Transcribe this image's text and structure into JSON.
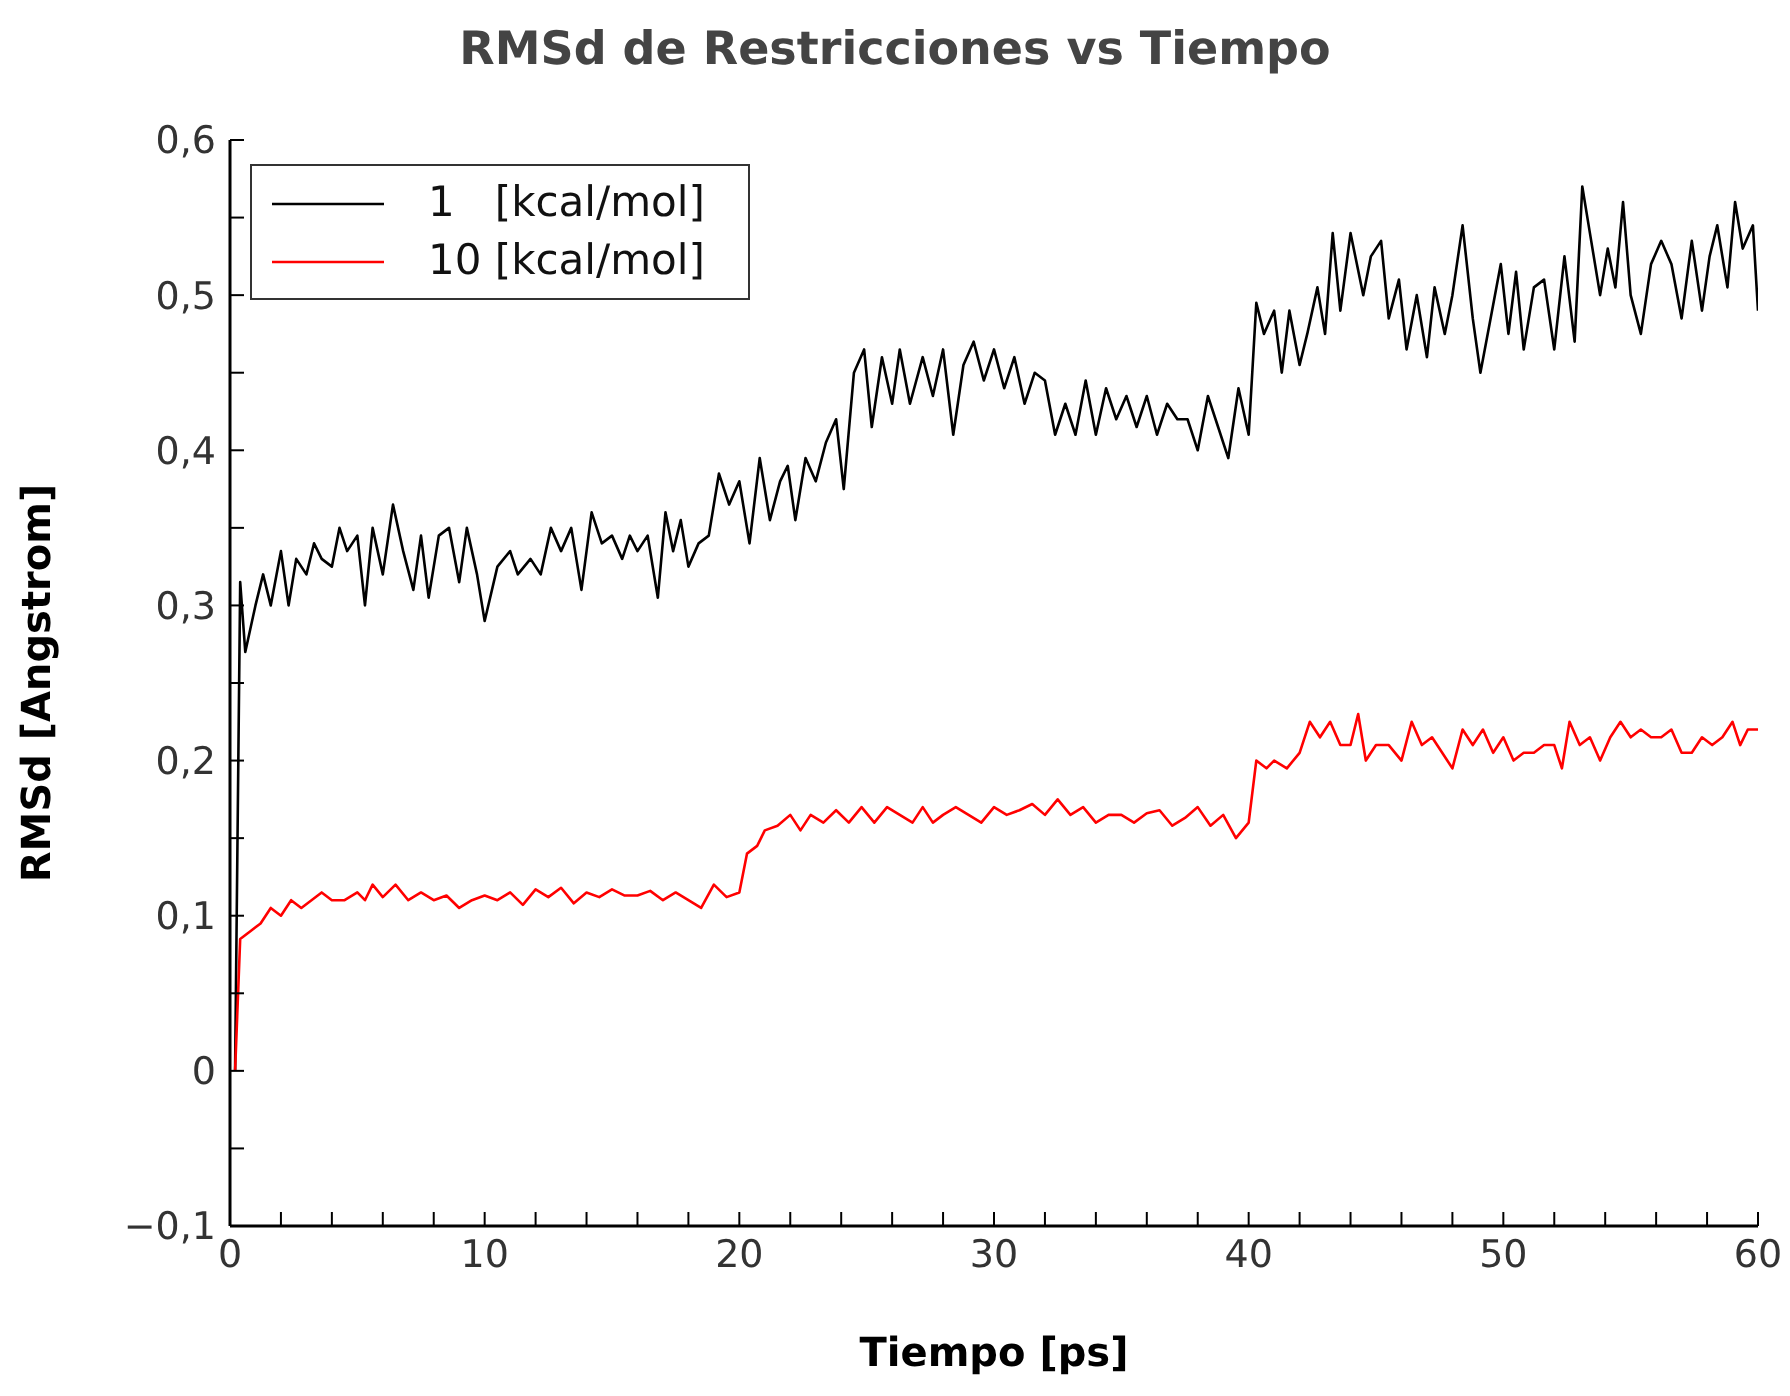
{
  "chart_data": {
    "type": "line",
    "title": "RMSd de Restricciones vs Tiempo",
    "xlabel": "Tiempo [ps]",
    "ylabel": "RMSd [Angstrom]",
    "xlim": [
      0,
      60
    ],
    "ylim": [
      -0.1,
      0.6
    ],
    "xticks": [
      0,
      {
        "value": 2,
        "label": null
      },
      {
        "value": 4,
        "label": null
      },
      {
        "value": 6,
        "label": null
      },
      {
        "value": 8,
        "label": null
      },
      10,
      {
        "value": 12,
        "label": null
      },
      {
        "value": 14,
        "label": null
      },
      {
        "value": 16,
        "label": null
      },
      {
        "value": 18,
        "label": null
      },
      20,
      {
        "value": 22,
        "label": null
      },
      {
        "value": 24,
        "label": null
      },
      {
        "value": 26,
        "label": null
      },
      {
        "value": 28,
        "label": null
      },
      30,
      {
        "value": 32,
        "label": null
      },
      {
        "value": 34,
        "label": null
      },
      {
        "value": 36,
        "label": null
      },
      {
        "value": 38,
        "label": null
      },
      40,
      {
        "value": 42,
        "label": null
      },
      {
        "value": 44,
        "label": null
      },
      {
        "value": 46,
        "label": null
      },
      {
        "value": 48,
        "label": null
      },
      50,
      {
        "value": 52,
        "label": null
      },
      {
        "value": 54,
        "label": null
      },
      {
        "value": 56,
        "label": null
      },
      {
        "value": 58,
        "label": null
      },
      60
    ],
    "yticks": [
      {
        "value": -0.1,
        "label": "−0,1"
      },
      {
        "value": -0.05,
        "label": null
      },
      {
        "value": 0,
        "label": "0"
      },
      {
        "value": 0.05,
        "label": null
      },
      {
        "value": 0.1,
        "label": "0,1"
      },
      {
        "value": 0.15,
        "label": null
      },
      {
        "value": 0.2,
        "label": "0,2"
      },
      {
        "value": 0.25,
        "label": null
      },
      {
        "value": 0.3,
        "label": "0,3"
      },
      {
        "value": 0.35,
        "label": null
      },
      {
        "value": 0.4,
        "label": "0,4"
      },
      {
        "value": 0.45,
        "label": null
      },
      {
        "value": 0.5,
        "label": "0,5"
      },
      {
        "value": 0.55,
        "label": null
      },
      {
        "value": 0.6,
        "label": "0,6"
      }
    ],
    "legend": "top left",
    "marker": "none",
    "line_style": "solid",
    "series": [
      {
        "name": "1   [kcal/mol]",
        "color": "#000000",
        "x": [
          0.2,
          0.4,
          0.6,
          1,
          1.3,
          1.6,
          2,
          2.3,
          2.6,
          3,
          3.3,
          3.6,
          4,
          4.3,
          4.6,
          5,
          5.3,
          5.6,
          6,
          6.4,
          6.8,
          7.2,
          7.5,
          7.8,
          8.2,
          8.6,
          9,
          9.3,
          9.7,
          10,
          10.5,
          11,
          11.3,
          11.8,
          12.2,
          12.6,
          13,
          13.4,
          13.8,
          14.2,
          14.6,
          15,
          15.4,
          15.7,
          16,
          16.4,
          16.8,
          17.1,
          17.4,
          17.7,
          18,
          18.4,
          18.8,
          19.2,
          19.6,
          20,
          20.4,
          20.8,
          21.2,
          21.6,
          21.9,
          22.2,
          22.6,
          23,
          23.4,
          23.8,
          24.1,
          24.5,
          24.9,
          25.2,
          25.6,
          26,
          26.3,
          26.7,
          27.2,
          27.6,
          28,
          28.4,
          28.8,
          29.2,
          29.6,
          30,
          30.4,
          30.8,
          31.2,
          31.6,
          32,
          32.4,
          32.8,
          33.2,
          33.6,
          34,
          34.4,
          34.8,
          35.2,
          35.6,
          36,
          36.4,
          36.8,
          37.2,
          37.6,
          38,
          38.4,
          38.8,
          39.2,
          39.6,
          40,
          40.3,
          40.6,
          41,
          41.3,
          41.6,
          42,
          42.3,
          42.7,
          43,
          43.3,
          43.6,
          44,
          44.5,
          44.8,
          45.2,
          45.5,
          45.9,
          46.2,
          46.6,
          47,
          47.3,
          47.7,
          48,
          48.4,
          48.8,
          49.1,
          49.5,
          49.9,
          50.2,
          50.5,
          50.8,
          51.2,
          51.6,
          52,
          52.4,
          52.8,
          53.1,
          53.4,
          53.8,
          54.1,
          54.4,
          54.7,
          55,
          55.4,
          55.8,
          56.2,
          56.6,
          57,
          57.4,
          57.8,
          58.1,
          58.4,
          58.8,
          59.1,
          59.4,
          59.8,
          60
        ],
        "values": [
          0,
          0.315,
          0.27,
          0.3,
          0.32,
          0.3,
          0.335,
          0.3,
          0.33,
          0.32,
          0.34,
          0.33,
          0.325,
          0.35,
          0.335,
          0.345,
          0.3,
          0.35,
          0.32,
          0.365,
          0.335,
          0.31,
          0.345,
          0.305,
          0.345,
          0.35,
          0.315,
          0.35,
          0.32,
          0.29,
          0.325,
          0.335,
          0.32,
          0.33,
          0.32,
          0.35,
          0.335,
          0.35,
          0.31,
          0.36,
          0.34,
          0.345,
          0.33,
          0.345,
          0.335,
          0.345,
          0.305,
          0.36,
          0.335,
          0.355,
          0.325,
          0.34,
          0.345,
          0.385,
          0.365,
          0.38,
          0.34,
          0.395,
          0.355,
          0.38,
          0.39,
          0.355,
          0.395,
          0.38,
          0.405,
          0.42,
          0.375,
          0.45,
          0.465,
          0.415,
          0.46,
          0.43,
          0.465,
          0.43,
          0.46,
          0.435,
          0.465,
          0.41,
          0.455,
          0.47,
          0.445,
          0.465,
          0.44,
          0.46,
          0.43,
          0.45,
          0.445,
          0.41,
          0.43,
          0.41,
          0.445,
          0.41,
          0.44,
          0.42,
          0.435,
          0.415,
          0.435,
          0.41,
          0.43,
          0.42,
          0.42,
          0.4,
          0.435,
          0.415,
          0.395,
          0.44,
          0.41,
          0.495,
          0.475,
          0.49,
          0.45,
          0.49,
          0.455,
          0.475,
          0.505,
          0.475,
          0.54,
          0.49,
          0.54,
          0.5,
          0.525,
          0.535,
          0.485,
          0.51,
          0.465,
          0.5,
          0.46,
          0.505,
          0.475,
          0.5,
          0.545,
          0.485,
          0.45,
          0.485,
          0.52,
          0.475,
          0.515,
          0.465,
          0.505,
          0.51,
          0.465,
          0.525,
          0.47,
          0.57,
          0.54,
          0.5,
          0.53,
          0.505,
          0.56,
          0.5,
          0.475,
          0.52,
          0.535,
          0.52,
          0.485,
          0.535,
          0.49,
          0.525,
          0.545,
          0.505,
          0.56,
          0.53,
          0.545,
          0.49
        ]
      },
      {
        "name": "10 [kcal/mol]",
        "color": "#ff0000",
        "x": [
          0.2,
          0.4,
          0.8,
          1.2,
          1.6,
          2,
          2.4,
          2.8,
          3.2,
          3.6,
          4,
          4.5,
          5,
          5.3,
          5.6,
          6,
          6.5,
          7,
          7.5,
          8,
          8.5,
          9,
          9.5,
          10,
          10.5,
          11,
          11.5,
          12,
          12.5,
          13,
          13.5,
          14,
          14.5,
          15,
          15.5,
          16,
          16.5,
          17,
          17.5,
          18,
          18.5,
          19,
          19.5,
          20,
          20.3,
          20.7,
          21,
          21.5,
          22,
          22.4,
          22.8,
          23.3,
          23.8,
          24.3,
          24.8,
          25.3,
          25.8,
          26.3,
          26.8,
          27.2,
          27.6,
          28,
          28.5,
          29,
          29.5,
          30,
          30.5,
          31,
          31.5,
          32,
          32.5,
          33,
          33.5,
          34,
          34.5,
          35,
          35.5,
          36,
          36.5,
          37,
          37.5,
          38,
          38.5,
          39,
          39.5,
          40,
          40.3,
          40.7,
          41,
          41.5,
          42,
          42.4,
          42.8,
          43.2,
          43.6,
          44,
          44.3,
          44.6,
          45,
          45.5,
          46,
          46.4,
          46.8,
          47.2,
          47.6,
          48,
          48.4,
          48.8,
          49.2,
          49.6,
          50,
          50.4,
          50.8,
          51.2,
          51.6,
          52,
          52.3,
          52.6,
          53,
          53.4,
          53.8,
          54.2,
          54.6,
          55,
          55.4,
          55.8,
          56.2,
          56.6,
          57,
          57.4,
          57.8,
          58.2,
          58.6,
          59,
          59.3,
          59.6,
          60
        ],
        "values": [
          0,
          0.085,
          0.09,
          0.095,
          0.105,
          0.1,
          0.11,
          0.105,
          0.11,
          0.115,
          0.11,
          0.11,
          0.115,
          0.11,
          0.12,
          0.112,
          0.12,
          0.11,
          0.115,
          0.11,
          0.113,
          0.105,
          0.11,
          0.113,
          0.11,
          0.115,
          0.107,
          0.117,
          0.112,
          0.118,
          0.108,
          0.115,
          0.112,
          0.117,
          0.113,
          0.113,
          0.116,
          0.11,
          0.115,
          0.11,
          0.105,
          0.12,
          0.112,
          0.115,
          0.14,
          0.145,
          0.155,
          0.158,
          0.165,
          0.155,
          0.165,
          0.16,
          0.168,
          0.16,
          0.17,
          0.16,
          0.17,
          0.165,
          0.16,
          0.17,
          0.16,
          0.165,
          0.17,
          0.165,
          0.16,
          0.17,
          0.165,
          0.168,
          0.172,
          0.165,
          0.175,
          0.165,
          0.17,
          0.16,
          0.165,
          0.165,
          0.16,
          0.166,
          0.168,
          0.158,
          0.163,
          0.17,
          0.158,
          0.165,
          0.15,
          0.16,
          0.2,
          0.195,
          0.2,
          0.195,
          0.205,
          0.225,
          0.215,
          0.225,
          0.21,
          0.21,
          0.23,
          0.2,
          0.21,
          0.21,
          0.2,
          0.225,
          0.21,
          0.215,
          0.205,
          0.195,
          0.22,
          0.21,
          0.22,
          0.205,
          0.215,
          0.2,
          0.205,
          0.205,
          0.21,
          0.21,
          0.195,
          0.225,
          0.21,
          0.215,
          0.2,
          0.215,
          0.225,
          0.215,
          0.22,
          0.215,
          0.215,
          0.22,
          0.205,
          0.205,
          0.215,
          0.21,
          0.215,
          0.225,
          0.21,
          0.22,
          0.22
        ]
      }
    ]
  }
}
